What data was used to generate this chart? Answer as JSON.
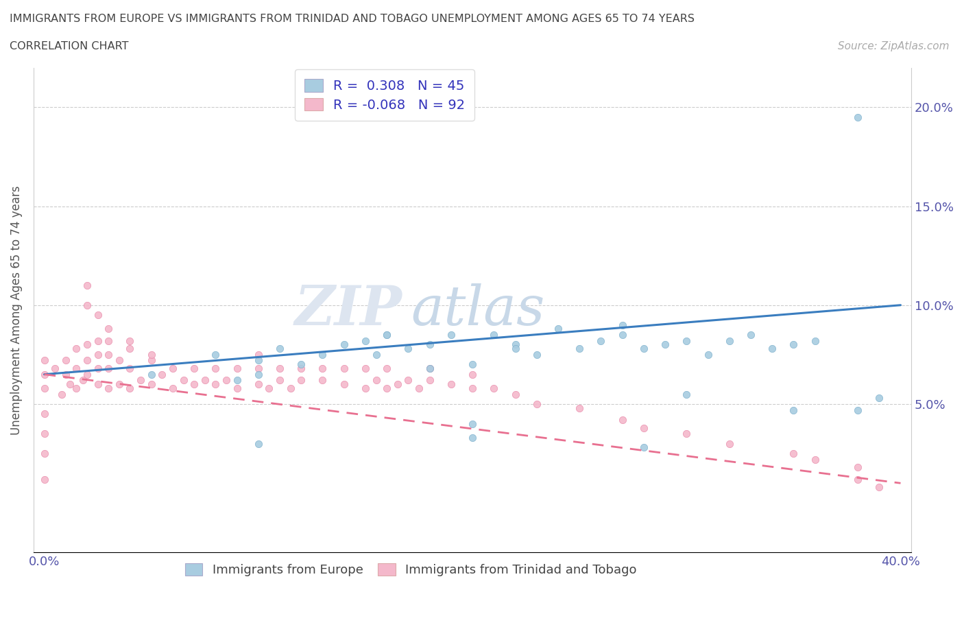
{
  "title_line1": "IMMIGRANTS FROM EUROPE VS IMMIGRANTS FROM TRINIDAD AND TOBAGO UNEMPLOYMENT AMONG AGES 65 TO 74 YEARS",
  "title_line2": "CORRELATION CHART",
  "source_text": "Source: ZipAtlas.com",
  "ylabel": "Unemployment Among Ages 65 to 74 years",
  "xlim": [
    -0.005,
    0.405
  ],
  "ylim": [
    -0.025,
    0.22
  ],
  "europe_color": "#a8cce0",
  "europe_edge_color": "#7aaecb",
  "trinidad_color": "#f4b8cb",
  "trinidad_edge_color": "#e888a8",
  "europe_line_color": "#3a7dbf",
  "trinidad_line_color": "#e87090",
  "R_europe": 0.308,
  "N_europe": 45,
  "R_trinidad": -0.068,
  "N_trinidad": 92,
  "legend_label_europe": "Immigrants from Europe",
  "legend_label_trinidad": "Immigrants from Trinidad and Tobago",
  "watermark_zip": "ZIP",
  "watermark_atlas": "atlas",
  "eu_line_y0": 0.065,
  "eu_line_y1": 0.1,
  "tt_line_y0": 0.065,
  "tt_line_y1": 0.01,
  "europe_x": [
    0.05,
    0.08,
    0.09,
    0.1,
    0.1,
    0.11,
    0.12,
    0.13,
    0.14,
    0.15,
    0.155,
    0.16,
    0.17,
    0.18,
    0.19,
    0.2,
    0.21,
    0.22,
    0.23,
    0.24,
    0.25,
    0.26,
    0.27,
    0.28,
    0.29,
    0.3,
    0.31,
    0.32,
    0.33,
    0.34,
    0.35,
    0.36,
    0.38,
    0.39,
    0.16,
    0.18,
    0.2,
    0.22,
    0.27,
    0.3,
    0.35,
    0.1,
    0.2,
    0.28,
    0.38
  ],
  "europe_y": [
    0.065,
    0.075,
    0.062,
    0.065,
    0.072,
    0.078,
    0.07,
    0.075,
    0.08,
    0.082,
    0.075,
    0.085,
    0.078,
    0.08,
    0.085,
    0.07,
    0.085,
    0.08,
    0.075,
    0.088,
    0.078,
    0.082,
    0.085,
    0.078,
    0.08,
    0.082,
    0.075,
    0.082,
    0.085,
    0.078,
    0.08,
    0.082,
    0.195,
    0.053,
    0.085,
    0.068,
    0.04,
    0.078,
    0.09,
    0.055,
    0.047,
    0.03,
    0.033,
    0.028,
    0.047
  ],
  "trinidad_x": [
    0.0,
    0.0,
    0.0,
    0.0,
    0.0,
    0.0,
    0.0,
    0.005,
    0.008,
    0.01,
    0.01,
    0.012,
    0.015,
    0.015,
    0.015,
    0.018,
    0.02,
    0.02,
    0.02,
    0.025,
    0.025,
    0.025,
    0.025,
    0.03,
    0.03,
    0.03,
    0.03,
    0.035,
    0.035,
    0.04,
    0.04,
    0.04,
    0.045,
    0.05,
    0.05,
    0.055,
    0.06,
    0.06,
    0.065,
    0.07,
    0.07,
    0.075,
    0.08,
    0.08,
    0.085,
    0.09,
    0.09,
    0.1,
    0.1,
    0.1,
    0.105,
    0.11,
    0.11,
    0.115,
    0.12,
    0.12,
    0.13,
    0.13,
    0.14,
    0.14,
    0.15,
    0.15,
    0.155,
    0.16,
    0.16,
    0.165,
    0.17,
    0.175,
    0.18,
    0.18,
    0.19,
    0.2,
    0.2,
    0.21,
    0.22,
    0.23,
    0.25,
    0.27,
    0.28,
    0.3,
    0.32,
    0.35,
    0.36,
    0.38,
    0.38,
    0.39,
    0.02,
    0.02,
    0.025,
    0.03,
    0.04,
    0.05
  ],
  "trinidad_y": [
    0.065,
    0.072,
    0.058,
    0.045,
    0.035,
    0.025,
    0.012,
    0.068,
    0.055,
    0.065,
    0.072,
    0.06,
    0.058,
    0.068,
    0.078,
    0.062,
    0.065,
    0.072,
    0.08,
    0.06,
    0.068,
    0.075,
    0.082,
    0.058,
    0.068,
    0.075,
    0.082,
    0.06,
    0.072,
    0.058,
    0.068,
    0.078,
    0.062,
    0.06,
    0.072,
    0.065,
    0.058,
    0.068,
    0.062,
    0.06,
    0.068,
    0.062,
    0.06,
    0.068,
    0.062,
    0.058,
    0.068,
    0.06,
    0.068,
    0.075,
    0.058,
    0.062,
    0.068,
    0.058,
    0.062,
    0.068,
    0.062,
    0.068,
    0.06,
    0.068,
    0.058,
    0.068,
    0.062,
    0.058,
    0.068,
    0.06,
    0.062,
    0.058,
    0.062,
    0.068,
    0.06,
    0.058,
    0.065,
    0.058,
    0.055,
    0.05,
    0.048,
    0.042,
    0.038,
    0.035,
    0.03,
    0.025,
    0.022,
    0.018,
    0.012,
    0.008,
    0.1,
    0.11,
    0.095,
    0.088,
    0.082,
    0.075
  ]
}
